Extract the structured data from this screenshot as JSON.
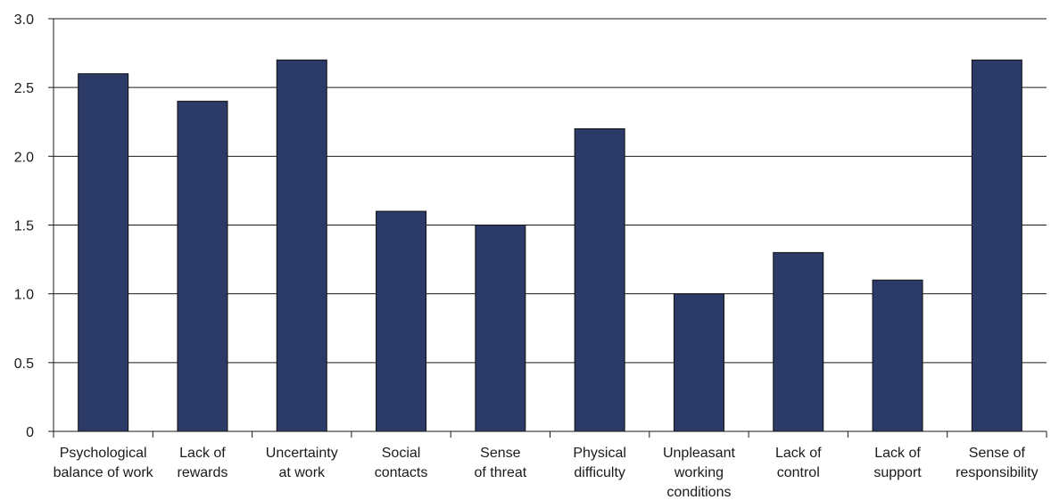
{
  "chart_data": {
    "type": "bar",
    "categories": [
      [
        "Psychological",
        "balance of work"
      ],
      [
        "Lack of",
        "rewards"
      ],
      [
        "Uncertainty",
        "at work"
      ],
      [
        "Social",
        "contacts"
      ],
      [
        "Sense",
        "of threat"
      ],
      [
        "Physical",
        "difficulty"
      ],
      [
        "Unpleasant",
        "working",
        "conditions"
      ],
      [
        "Lack of",
        "control"
      ],
      [
        "Lack of",
        "support"
      ],
      [
        "Sense of",
        "responsibility"
      ]
    ],
    "values": [
      2.6,
      2.4,
      2.7,
      1.6,
      1.5,
      2.2,
      1.0,
      1.3,
      1.1,
      2.7
    ],
    "title": "",
    "xlabel": "",
    "ylabel": "",
    "ylim": [
      0,
      3.0
    ],
    "yticks": [
      {
        "value": 0,
        "label": "0"
      },
      {
        "value": 0.5,
        "label": "0.5"
      },
      {
        "value": 1.0,
        "label": "1.0"
      },
      {
        "value": 1.5,
        "label": "1.5"
      },
      {
        "value": 2.0,
        "label": "2.0"
      },
      {
        "value": 2.5,
        "label": "2.5"
      },
      {
        "value": 3.0,
        "label": "3.0"
      }
    ],
    "grid": true,
    "bar_color": "#2b3a66"
  }
}
